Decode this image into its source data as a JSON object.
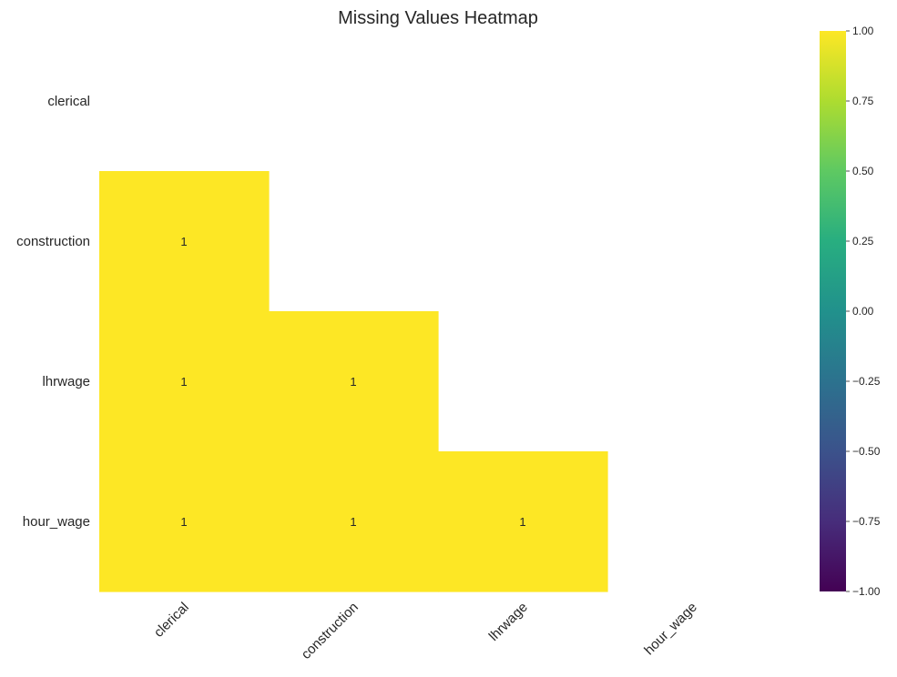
{
  "chart_data": {
    "type": "heatmap",
    "title": "Missing Values Heatmap",
    "rows": [
      "clerical",
      "construction",
      "lhrwage",
      "hour_wage"
    ],
    "columns": [
      "clerical",
      "construction",
      "lhrwage",
      "hour_wage"
    ],
    "values": [
      [
        null,
        null,
        null,
        null
      ],
      [
        1,
        null,
        null,
        null
      ],
      [
        1,
        1,
        null,
        null
      ],
      [
        1,
        1,
        1,
        null
      ]
    ],
    "annotations": [
      [
        "",
        "",
        "",
        ""
      ],
      [
        "1",
        "",
        "",
        ""
      ],
      [
        "1",
        "1",
        "",
        ""
      ],
      [
        "1",
        "1",
        "1",
        ""
      ]
    ],
    "colorbar": {
      "colormap": "viridis",
      "min": -1.0,
      "max": 1.0,
      "ticks": [
        "1.00",
        "0.75",
        "0.50",
        "0.25",
        "0.00",
        "−0.25",
        "−0.50",
        "−0.75",
        "−1.00"
      ],
      "tick_values": [
        1.0,
        0.75,
        0.5,
        0.25,
        0.0,
        -0.25,
        -0.5,
        -0.75,
        -1.0
      ]
    },
    "grid": false,
    "mask": "upper triangle including diagonal"
  }
}
